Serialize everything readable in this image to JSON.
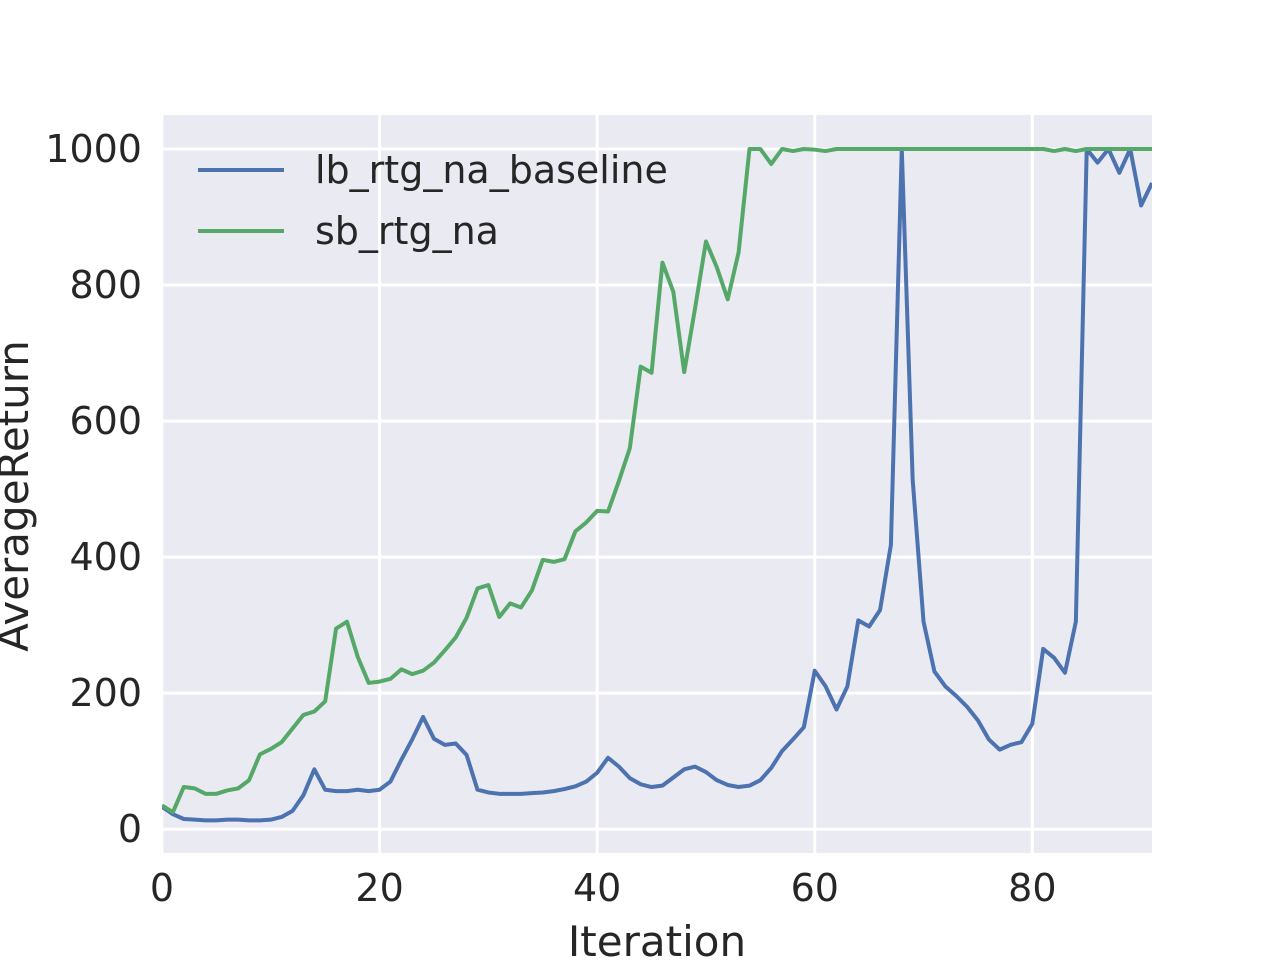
{
  "chart_data": {
    "type": "line",
    "title": "",
    "xlabel": "Iteration",
    "ylabel": "AverageReturn",
    "xlim": [
      0,
      91
    ],
    "ylim": [
      -35,
      1050
    ],
    "xticks": [
      0,
      20,
      40,
      60,
      80
    ],
    "yticks": [
      0,
      200,
      400,
      600,
      800,
      1000
    ],
    "x_tick_labels": [
      "0",
      "20",
      "40",
      "60",
      "80"
    ],
    "y_tick_labels": [
      "0",
      "200",
      "400",
      "600",
      "800",
      "1000"
    ],
    "grid": true,
    "legend_position": "top-left",
    "series": [
      {
        "name": "lb_rtg_na_baseline",
        "color": "#4c72b0",
        "x": [
          0,
          1,
          2,
          3,
          4,
          5,
          6,
          7,
          8,
          9,
          10,
          11,
          12,
          13,
          14,
          15,
          16,
          17,
          18,
          19,
          20,
          21,
          22,
          23,
          24,
          25,
          26,
          27,
          28,
          29,
          30,
          31,
          32,
          33,
          34,
          35,
          36,
          37,
          38,
          39,
          40,
          41,
          42,
          43,
          44,
          45,
          46,
          47,
          48,
          49,
          50,
          51,
          52,
          53,
          54,
          55,
          56,
          57,
          58,
          59,
          60,
          61,
          62,
          63,
          64,
          65,
          66,
          67,
          68,
          69,
          70,
          71,
          72,
          73,
          74,
          75,
          76,
          77,
          78,
          79,
          80,
          81,
          82,
          83,
          84,
          85,
          86,
          87,
          88,
          89,
          90,
          91
        ],
        "y": [
          33,
          22,
          15,
          14,
          13,
          13,
          14,
          14,
          13,
          13,
          14,
          18,
          27,
          50,
          88,
          58,
          56,
          56,
          58,
          56,
          58,
          70,
          102,
          132,
          165,
          133,
          124,
          126,
          109,
          58,
          54,
          52,
          52,
          52,
          53,
          54,
          56,
          59,
          63,
          70,
          83,
          105,
          92,
          75,
          66,
          62,
          64,
          76,
          88,
          92,
          84,
          72,
          65,
          62,
          64,
          72,
          90,
          115,
          132,
          150,
          233,
          210,
          176,
          210,
          307,
          298,
          322,
          418,
          1000,
          514,
          305,
          232,
          210,
          196,
          180,
          160,
          132,
          117,
          124,
          128,
          155,
          265,
          252,
          230,
          305,
          1000,
          980,
          1000,
          965,
          1000,
          917,
          950
        ]
      },
      {
        "name": "sb_rtg_na",
        "color": "#55a868",
        "x": [
          0,
          1,
          2,
          3,
          4,
          5,
          6,
          7,
          8,
          9,
          10,
          11,
          12,
          13,
          14,
          15,
          16,
          17,
          18,
          19,
          20,
          21,
          22,
          23,
          24,
          25,
          26,
          27,
          28,
          29,
          30,
          31,
          32,
          33,
          34,
          35,
          36,
          37,
          38,
          39,
          40,
          41,
          42,
          43,
          44,
          45,
          46,
          47,
          48,
          49,
          50,
          51,
          52,
          53,
          54,
          55,
          56,
          57,
          58,
          59,
          60,
          61,
          62,
          63,
          64,
          65,
          66,
          67,
          68,
          69,
          70,
          71,
          72,
          73,
          74,
          75,
          76,
          77,
          78,
          79,
          80,
          81,
          82,
          83,
          84,
          85,
          86,
          87,
          88,
          89,
          90,
          91
        ],
        "y": [
          35,
          25,
          62,
          60,
          52,
          52,
          57,
          60,
          72,
          110,
          118,
          128,
          148,
          168,
          173,
          188,
          295,
          305,
          253,
          215,
          217,
          221,
          235,
          228,
          233,
          245,
          263,
          282,
          311,
          354,
          359,
          312,
          332,
          326,
          351,
          396,
          393,
          397,
          438,
          451,
          468,
          467,
          512,
          560,
          680,
          671,
          833,
          790,
          672,
          766,
          864,
          826,
          779,
          848,
          1000,
          1000,
          978,
          1000,
          997,
          1000,
          999,
          997,
          1000,
          1000,
          1000,
          1000,
          1000,
          1000,
          1000,
          1000,
          1000,
          1000,
          1000,
          1000,
          1000,
          1000,
          1000,
          1000,
          1000,
          1000,
          1000,
          1000,
          997,
          1000,
          997,
          1000,
          1000,
          1000,
          1000,
          1000,
          1000,
          1000
        ]
      }
    ]
  }
}
